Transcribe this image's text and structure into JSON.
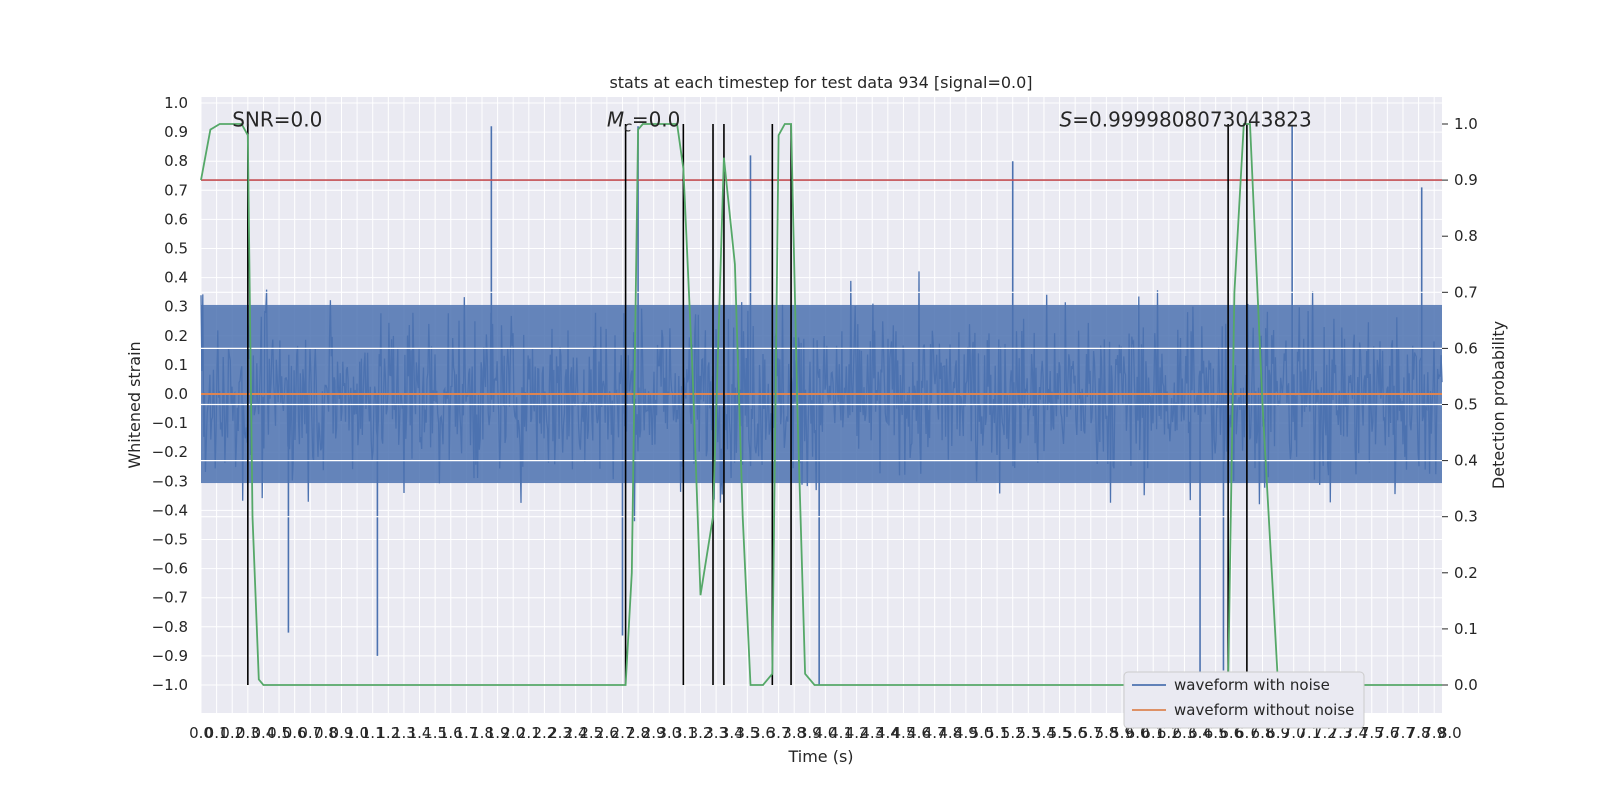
{
  "chart_data": {
    "type": "line",
    "title": "stats at each timestep for test data 934 [signal=0.0]",
    "xlabel": "Time (s)",
    "ylabel_left": "Whitened strain",
    "ylabel_right": "Detection probability",
    "xlim": [
      0.0,
      7.95
    ],
    "ylim_left": [
      -1.1,
      1.02
    ],
    "ylim_right": [
      -0.05,
      1.04
    ],
    "x_tick_step": 0.1,
    "y_ticks_left": [
      -1.0,
      -0.9,
      -0.8,
      -0.7,
      -0.6,
      -0.5,
      -0.4,
      -0.3,
      -0.2,
      -0.1,
      0.0,
      0.1,
      0.2,
      0.3,
      0.4,
      0.5,
      0.6,
      0.7,
      0.8,
      0.9,
      1.0
    ],
    "y_ticks_right": [
      0.0,
      0.1,
      0.2,
      0.3,
      0.4,
      0.5,
      0.6,
      0.7,
      0.8,
      0.9,
      1.0
    ],
    "grid": true,
    "background": "#eaeaf2",
    "annotations": [
      {
        "text": "SNR=0.0",
        "x": 0.2,
        "y": 0.94
      },
      {
        "text": "M_c=0.0",
        "x": 2.6,
        "y": 0.94
      },
      {
        "text": "S=0.9999808073043823",
        "x": 5.5,
        "y": 0.94
      }
    ],
    "threshold_line": {
      "axis": "right",
      "value": 0.9,
      "color": "#c44e52"
    },
    "vertical_lines": [
      0.3,
      2.72,
      3.09,
      3.28,
      3.35,
      3.66,
      3.78,
      6.58,
      6.7
    ],
    "series": [
      {
        "name": "waveform with noise",
        "axis": "left",
        "color": "#4c72b0",
        "style": "noise",
        "envelope": {
          "typical_amplitude": 0.36,
          "peak_amplitude": 1.0
        },
        "notable_peaks": [
          {
            "x": 1.86,
            "y": 0.92
          },
          {
            "x": 2.8,
            "y": 0.92
          },
          {
            "x": 6.99,
            "y": 0.92
          },
          {
            "x": 3.52,
            "y": 0.82
          },
          {
            "x": 5.2,
            "y": 0.8
          },
          {
            "x": 7.82,
            "y": 0.71
          },
          {
            "x": 1.13,
            "y": -0.9
          },
          {
            "x": 2.7,
            "y": -0.83
          },
          {
            "x": 3.96,
            "y": -1.0
          },
          {
            "x": 6.4,
            "y": -0.97
          },
          {
            "x": 6.55,
            "y": -0.95
          },
          {
            "x": 0.56,
            "y": -0.82
          }
        ]
      },
      {
        "name": "waveform without noise",
        "axis": "left",
        "color": "#dd8452",
        "style": "flat",
        "value": 0.0
      },
      {
        "name": "detection probability",
        "axis": "right",
        "color": "#55a868",
        "x": [
          0.0,
          0.06,
          0.12,
          0.2,
          0.26,
          0.3,
          0.33,
          0.37,
          0.4,
          2.6,
          2.72,
          2.76,
          2.8,
          2.83,
          2.9,
          3.05,
          3.09,
          3.15,
          3.2,
          3.28,
          3.35,
          3.42,
          3.47,
          3.52,
          3.6,
          3.66,
          3.7,
          3.74,
          3.78,
          3.82,
          3.87,
          3.93,
          6.5,
          6.58,
          6.62,
          6.68,
          6.72,
          6.8,
          6.9,
          7.95
        ],
        "y": [
          0.9,
          0.99,
          1.0,
          1.0,
          1.0,
          0.98,
          0.3,
          0.01,
          0.0,
          0.0,
          0.0,
          0.2,
          0.99,
          1.0,
          1.0,
          1.0,
          0.92,
          0.55,
          0.16,
          0.3,
          0.94,
          0.75,
          0.3,
          0.0,
          0.0,
          0.02,
          0.98,
          1.0,
          1.0,
          0.5,
          0.02,
          0.0,
          0.0,
          0.0,
          0.7,
          1.0,
          1.0,
          0.5,
          0.0,
          0.0
        ]
      }
    ],
    "legend": {
      "placement": "lower-right",
      "entries": [
        "waveform with noise",
        "waveform without noise"
      ]
    }
  }
}
